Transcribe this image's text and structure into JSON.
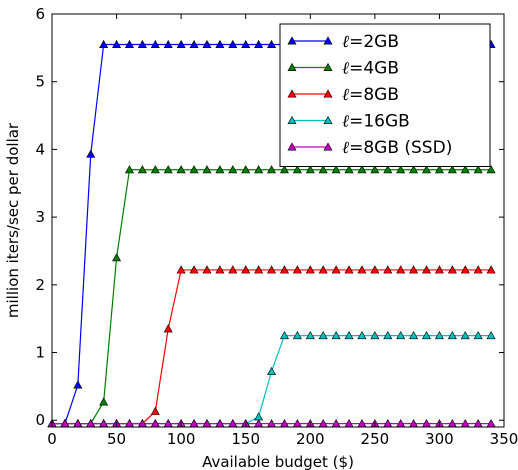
{
  "chart_data": {
    "type": "line",
    "title": "",
    "xlabel": "Available budget ($)",
    "ylabel": "million iters/sec per dollar",
    "xlim": [
      0,
      350
    ],
    "ylim": [
      -0.1,
      6
    ],
    "xticks": [
      0,
      50,
      100,
      150,
      200,
      250,
      300,
      350
    ],
    "yticks": [
      0,
      1,
      2,
      3,
      4,
      5,
      6
    ],
    "grid": false,
    "legend_position": "top-right",
    "x": [
      0,
      10,
      20,
      30,
      40,
      50,
      60,
      70,
      80,
      90,
      100,
      110,
      120,
      130,
      140,
      150,
      160,
      170,
      180,
      190,
      200,
      210,
      220,
      230,
      240,
      250,
      260,
      270,
      280,
      290,
      300,
      310,
      320,
      330,
      340
    ],
    "series": [
      {
        "name_prefix": "ℓ=",
        "name_value": "2GB",
        "color": "#0000ff",
        "values": [
          -0.05,
          -0.05,
          0.52,
          3.93,
          5.55,
          5.55,
          5.55,
          5.55,
          5.55,
          5.55,
          5.55,
          5.55,
          5.55,
          5.55,
          5.55,
          5.55,
          5.55,
          5.55,
          5.55,
          5.55,
          5.55,
          5.55,
          5.55,
          5.55,
          5.55,
          5.55,
          5.55,
          5.55,
          5.55,
          5.55,
          5.55,
          5.55,
          5.55,
          5.55,
          5.55
        ]
      },
      {
        "name_prefix": "ℓ=",
        "name_value": "4GB",
        "color": "#008000",
        "values": [
          -0.05,
          -0.05,
          -0.05,
          -0.05,
          0.27,
          2.4,
          3.7,
          3.7,
          3.7,
          3.7,
          3.7,
          3.7,
          3.7,
          3.7,
          3.7,
          3.7,
          3.7,
          3.7,
          3.7,
          3.7,
          3.7,
          3.7,
          3.7,
          3.7,
          3.7,
          3.7,
          3.7,
          3.7,
          3.7,
          3.7,
          3.7,
          3.7,
          3.7,
          3.7,
          3.7
        ]
      },
      {
        "name_prefix": "ℓ=",
        "name_value": "8GB",
        "color": "#ff0000",
        "values": [
          -0.05,
          -0.05,
          -0.05,
          -0.05,
          -0.05,
          -0.05,
          -0.05,
          -0.05,
          0.13,
          1.35,
          2.22,
          2.22,
          2.22,
          2.22,
          2.22,
          2.22,
          2.22,
          2.22,
          2.22,
          2.22,
          2.22,
          2.22,
          2.22,
          2.22,
          2.22,
          2.22,
          2.22,
          2.22,
          2.22,
          2.22,
          2.22,
          2.22,
          2.22,
          2.22,
          2.22
        ]
      },
      {
        "name_prefix": "ℓ=",
        "name_value": "16GB",
        "color": "#00bfbf",
        "values": [
          -0.05,
          -0.05,
          -0.05,
          -0.05,
          -0.05,
          -0.05,
          -0.05,
          -0.05,
          -0.05,
          -0.05,
          -0.05,
          -0.05,
          -0.05,
          -0.05,
          -0.05,
          -0.05,
          0.05,
          0.72,
          1.25,
          1.25,
          1.25,
          1.25,
          1.25,
          1.25,
          1.25,
          1.25,
          1.25,
          1.25,
          1.25,
          1.25,
          1.25,
          1.25,
          1.25,
          1.25,
          1.25
        ]
      },
      {
        "name_prefix": "ℓ=",
        "name_value": "8GB (SSD)",
        "color": "#bf00bf",
        "values": [
          -0.05,
          -0.05,
          -0.05,
          -0.05,
          -0.05,
          -0.05,
          -0.05,
          -0.05,
          -0.05,
          -0.05,
          -0.05,
          -0.05,
          -0.05,
          -0.05,
          -0.05,
          -0.05,
          -0.05,
          -0.05,
          -0.05,
          -0.05,
          -0.05,
          -0.05,
          -0.05,
          -0.05,
          -0.05,
          -0.05,
          -0.05,
          -0.05,
          -0.05,
          -0.05,
          -0.05,
          -0.05,
          -0.05,
          -0.05,
          -0.05
        ]
      }
    ]
  }
}
